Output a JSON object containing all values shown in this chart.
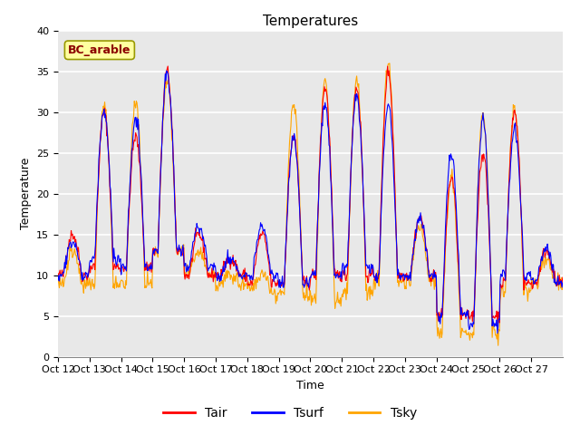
{
  "title": "Temperatures",
  "xlabel": "Time",
  "ylabel": "Temperature",
  "ylim": [
    0,
    40
  ],
  "xtick_labels": [
    "Oct 12",
    "Oct 13",
    "Oct 14",
    "Oct 15",
    "Oct 16",
    "Oct 17",
    "Oct 18",
    "Oct 19",
    "Oct 20",
    "Oct 21",
    "Oct 22",
    "Oct 23",
    "Oct 24",
    "Oct 25",
    "Oct 26",
    "Oct 27"
  ],
  "legend_labels": [
    "Tair",
    "Tsurf",
    "Tsky"
  ],
  "line_colors": [
    "#ff0000",
    "#0000ff",
    "#ffa500"
  ],
  "annotation_text": "BC_arable",
  "annotation_color": "#8b0000",
  "annotation_bg": "#ffffa0",
  "bg_color": "#e8e8e8",
  "title_fontsize": 11,
  "axis_fontsize": 9,
  "tick_fontsize": 8,
  "legend_fontsize": 10
}
